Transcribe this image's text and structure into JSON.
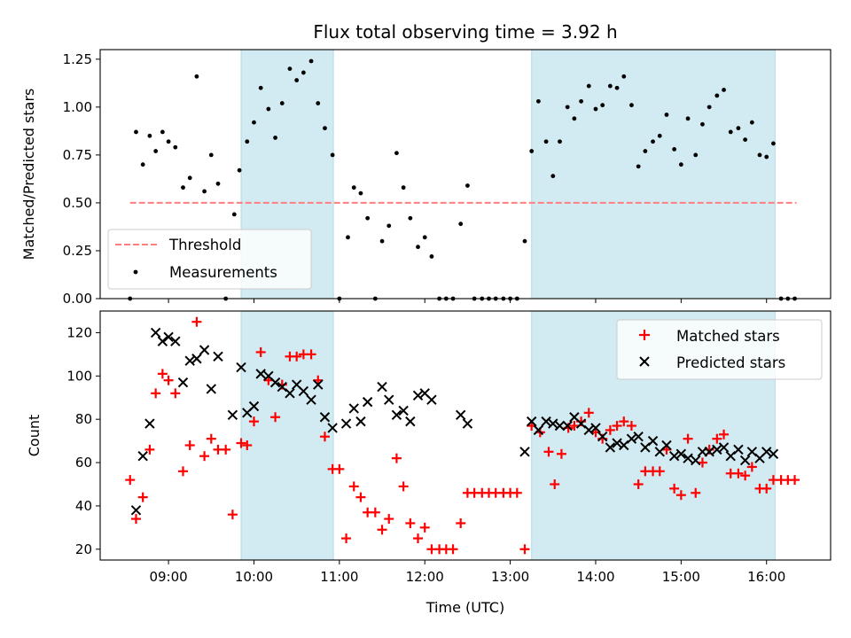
{
  "chart_data": [
    {
      "type": "scatter",
      "title": "Flux total observing time = 3.92 h",
      "ylabel": "Matched/Predicted stars",
      "xlabel": "",
      "xlim": [
        8.2,
        16.75
      ],
      "ylim": [
        0,
        1.3
      ],
      "y_ticks": [
        0,
        0.25,
        0.5,
        0.75,
        1.0,
        1.25
      ],
      "y_tick_labels": [
        "0.00",
        "0.25",
        "0.50",
        "0.75",
        "1.00",
        "1.25"
      ],
      "x_ticks": [
        9,
        10,
        11,
        12,
        13,
        14,
        15,
        16
      ],
      "shaded_intervals": [
        [
          9.85,
          10.93
        ],
        [
          13.25,
          16.1
        ]
      ],
      "shade_color": "#add8e6",
      "threshold": {
        "name": "Threshold",
        "value": 0.5,
        "x_range": [
          8.55,
          16.35
        ],
        "color": "#ff7f7f"
      },
      "series": [
        {
          "name": "Measurements",
          "color": "#000000",
          "marker": "dot",
          "x": [
            8.55,
            8.62,
            8.7,
            8.78,
            8.85,
            8.93,
            9.0,
            9.08,
            9.17,
            9.25,
            9.33,
            9.42,
            9.5,
            9.58,
            9.67,
            9.77,
            9.83,
            9.92,
            10.0,
            10.08,
            10.17,
            10.25,
            10.33,
            10.42,
            10.5,
            10.58,
            10.67,
            10.75,
            10.83,
            10.92,
            11.0,
            11.1,
            11.17,
            11.25,
            11.33,
            11.42,
            11.5,
            11.58,
            11.67,
            11.75,
            11.83,
            11.92,
            12.0,
            12.08,
            12.17,
            12.25,
            12.33,
            12.42,
            12.5,
            12.58,
            12.67,
            12.75,
            12.83,
            12.92,
            13.0,
            13.08,
            13.17,
            13.25,
            13.33,
            13.42,
            13.5,
            13.58,
            13.67,
            13.75,
            13.83,
            13.92,
            14.0,
            14.08,
            14.17,
            14.25,
            14.33,
            14.42,
            14.5,
            14.58,
            14.67,
            14.75,
            14.83,
            14.92,
            15.0,
            15.08,
            15.17,
            15.25,
            15.33,
            15.42,
            15.5,
            15.58,
            15.67,
            15.75,
            15.83,
            15.92,
            16.0,
            16.08,
            16.17,
            16.25,
            16.33
          ],
          "y": [
            0.0,
            0.87,
            0.7,
            0.85,
            0.77,
            0.87,
            0.82,
            0.79,
            0.58,
            0.63,
            1.16,
            0.56,
            0.75,
            0.6,
            0.0,
            0.44,
            0.67,
            0.82,
            0.92,
            1.1,
            0.99,
            0.84,
            1.02,
            1.2,
            1.14,
            1.18,
            1.24,
            1.02,
            0.89,
            0.75,
            0.0,
            0.32,
            0.58,
            0.55,
            0.42,
            0.0,
            0.3,
            0.38,
            0.76,
            0.58,
            0.42,
            0.27,
            0.32,
            0.22,
            0.0,
            0.0,
            0.0,
            0.39,
            0.59,
            0.0,
            0.0,
            0.0,
            0.0,
            0.0,
            0.0,
            0.0,
            0.3,
            0.77,
            1.03,
            0.82,
            0.64,
            0.82,
            1.0,
            0.94,
            1.03,
            1.11,
            0.99,
            1.01,
            1.11,
            1.1,
            1.16,
            1.01,
            0.69,
            0.77,
            0.82,
            0.85,
            0.96,
            0.78,
            0.7,
            0.94,
            0.75,
            0.91,
            1.0,
            1.06,
            1.09,
            0.87,
            0.89,
            0.83,
            0.92,
            0.75,
            0.74,
            0.81,
            0.0,
            0.0,
            0.0
          ]
        }
      ],
      "legend": {
        "position": "lower left",
        "entries": [
          "Threshold",
          "Measurements"
        ]
      }
    },
    {
      "type": "scatter",
      "title": "",
      "xlabel": "Time (UTC)",
      "ylabel": "Count",
      "xlim": [
        8.2,
        16.75
      ],
      "ylim": [
        15,
        130
      ],
      "y_ticks": [
        20,
        40,
        60,
        80,
        100,
        120
      ],
      "x_ticks": [
        9,
        10,
        11,
        12,
        13,
        14,
        15,
        16
      ],
      "x_tick_labels": [
        "09:00",
        "10:00",
        "11:00",
        "12:00",
        "13:00",
        "14:00",
        "15:00",
        "16:00"
      ],
      "shaded_intervals": [
        [
          9.85,
          10.93
        ],
        [
          13.25,
          16.1
        ]
      ],
      "shade_color": "#add8e6",
      "series": [
        {
          "name": "Matched stars",
          "color": "#ff0000",
          "marker": "plus",
          "x": [
            8.55,
            8.62,
            8.7,
            8.78,
            8.85,
            8.93,
            9.0,
            9.08,
            9.17,
            9.25,
            9.33,
            9.42,
            9.5,
            9.58,
            9.67,
            9.75,
            9.85,
            9.92,
            10.0,
            10.08,
            10.17,
            10.25,
            10.33,
            10.42,
            10.5,
            10.58,
            10.67,
            10.75,
            10.83,
            10.92,
            11.0,
            11.08,
            11.17,
            11.25,
            11.33,
            11.42,
            11.5,
            11.58,
            11.67,
            11.75,
            11.83,
            11.92,
            12.0,
            12.08,
            12.17,
            12.25,
            12.33,
            12.42,
            12.5,
            12.58,
            12.67,
            12.75,
            12.83,
            12.92,
            13.0,
            13.08,
            13.17,
            13.25,
            13.35,
            13.45,
            13.52,
            13.6,
            13.68,
            13.75,
            13.83,
            13.92,
            14.0,
            14.08,
            14.17,
            14.25,
            14.33,
            14.42,
            14.5,
            14.58,
            14.67,
            14.75,
            14.83,
            14.92,
            15.0,
            15.08,
            15.17,
            15.25,
            15.33,
            15.42,
            15.5,
            15.58,
            15.67,
            15.75,
            15.83,
            15.92,
            16.0,
            16.08,
            16.17,
            16.25,
            16.33
          ],
          "y": [
            52,
            34,
            44,
            66,
            92,
            101,
            98,
            92,
            56,
            68,
            125,
            63,
            71,
            66,
            66,
            36,
            69,
            68,
            79,
            111,
            98,
            81,
            96,
            109,
            109,
            110,
            110,
            98,
            72,
            57,
            57,
            25,
            49,
            44,
            37,
            37,
            29,
            34,
            62,
            49,
            32,
            25,
            30,
            20,
            20,
            20,
            20,
            32,
            46,
            46,
            46,
            46,
            46,
            46,
            46,
            46,
            20,
            77,
            74,
            65,
            50,
            64,
            76,
            77,
            79,
            83,
            74,
            71,
            75,
            77,
            79,
            77,
            50,
            56,
            56,
            56,
            66,
            48,
            45,
            71,
            46,
            60,
            66,
            71,
            73,
            55,
            55,
            54,
            58,
            48,
            48,
            52,
            52,
            52,
            52
          ]
        },
        {
          "name": "Predicted stars",
          "color": "#000000",
          "marker": "x",
          "x": [
            8.62,
            8.7,
            8.78,
            8.85,
            8.93,
            9.0,
            9.08,
            9.17,
            9.25,
            9.33,
            9.42,
            9.5,
            9.58,
            9.75,
            9.85,
            9.92,
            10.0,
            10.08,
            10.17,
            10.25,
            10.33,
            10.42,
            10.5,
            10.58,
            10.67,
            10.75,
            10.83,
            10.92,
            11.08,
            11.17,
            11.25,
            11.33,
            11.5,
            11.58,
            11.67,
            11.75,
            11.83,
            11.92,
            12.0,
            12.08,
            12.42,
            12.5,
            13.17,
            13.25,
            13.33,
            13.42,
            13.5,
            13.58,
            13.67,
            13.75,
            13.83,
            13.92,
            14.0,
            14.08,
            14.17,
            14.25,
            14.33,
            14.42,
            14.5,
            14.58,
            14.67,
            14.75,
            14.83,
            14.92,
            15.0,
            15.08,
            15.17,
            15.25,
            15.33,
            15.42,
            15.5,
            15.58,
            15.67,
            15.75,
            15.83,
            15.92,
            16.0,
            16.08
          ],
          "y": [
            38,
            63,
            78,
            120,
            116,
            118,
            116,
            97,
            107,
            108,
            112,
            94,
            109,
            82,
            104,
            83,
            86,
            101,
            100,
            97,
            95,
            92,
            96,
            93,
            89,
            96,
            81,
            76,
            78,
            85,
            79,
            88,
            95,
            89,
            82,
            84,
            79,
            91,
            92,
            89,
            82,
            78,
            65,
            79,
            75,
            79,
            78,
            77,
            77,
            81,
            78,
            75,
            76,
            72,
            67,
            69,
            68,
            71,
            72,
            67,
            70,
            65,
            68,
            63,
            64,
            62,
            61,
            65,
            65,
            66,
            67,
            63,
            66,
            61,
            65,
            62,
            65,
            64
          ]
        }
      ],
      "legend": {
        "position": "upper right",
        "entries": [
          "Matched stars",
          "Predicted stars"
        ]
      }
    }
  ]
}
